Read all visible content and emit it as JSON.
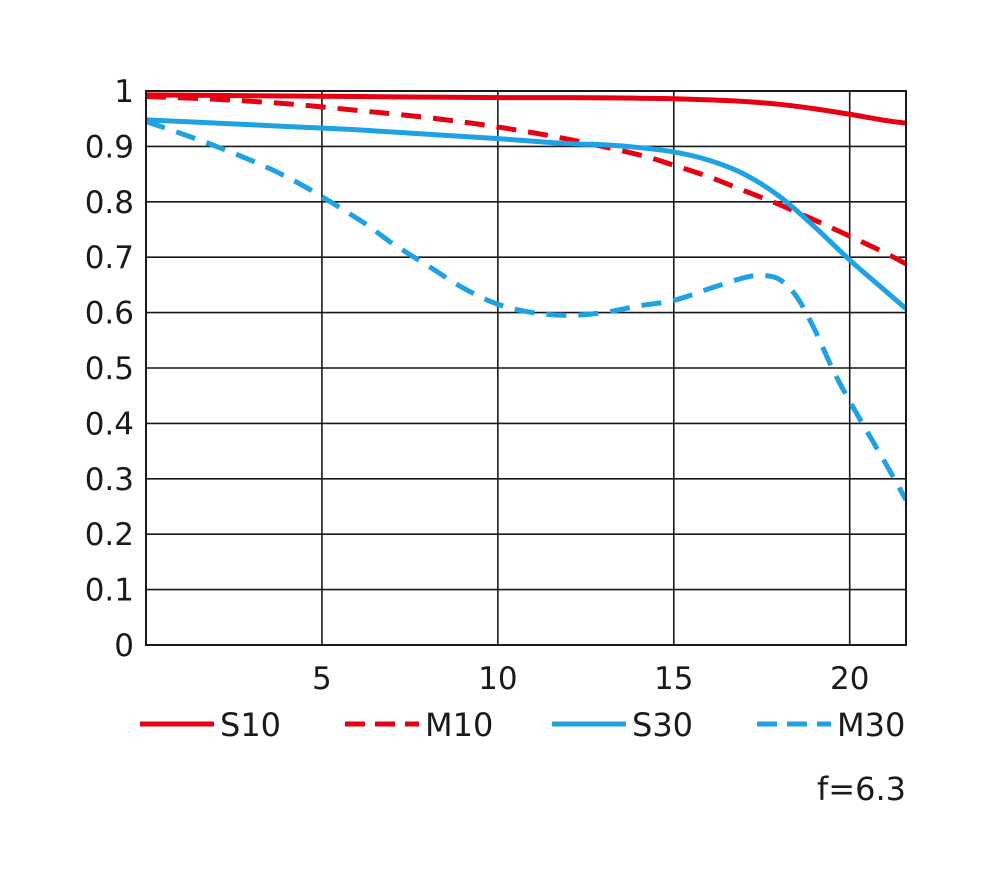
{
  "chart_data": {
    "type": "line",
    "title": "",
    "xlabel": "",
    "ylabel": "",
    "xlim": [
      0,
      21.6
    ],
    "ylim": [
      0,
      1
    ],
    "x_ticks": [
      5,
      10,
      15,
      20
    ],
    "x_tick_labels": [
      "5",
      "10",
      "15",
      "20"
    ],
    "y_ticks": [
      0,
      0.1,
      0.2,
      0.3,
      0.4,
      0.5,
      0.6,
      0.7,
      0.8,
      0.9,
      1
    ],
    "y_tick_labels": [
      "0",
      "0.1",
      "0.2",
      "0.3",
      "0.4",
      "0.5",
      "0.6",
      "0.7",
      "0.8",
      "0.9",
      "1"
    ],
    "grid": true,
    "legend_position": "bottom",
    "annotation": "f=6.3",
    "series": [
      {
        "name": "S10",
        "color": "#e60012",
        "dash": "solid",
        "x": [
          0,
          2,
          4,
          6,
          8,
          10,
          12,
          14,
          15,
          16,
          17,
          18,
          19,
          20,
          21,
          21.6
        ],
        "y": [
          0.993,
          0.992,
          0.991,
          0.99,
          0.989,
          0.988,
          0.988,
          0.987,
          0.986,
          0.984,
          0.981,
          0.976,
          0.968,
          0.958,
          0.947,
          0.942
        ]
      },
      {
        "name": "M10",
        "color": "#e60012",
        "dash": "dashed",
        "x": [
          0,
          2,
          4,
          6,
          8,
          10,
          12,
          14,
          15,
          16,
          17,
          18,
          19,
          20,
          21,
          21.6
        ],
        "y": [
          0.99,
          0.985,
          0.977,
          0.965,
          0.952,
          0.935,
          0.913,
          0.885,
          0.866,
          0.845,
          0.82,
          0.795,
          0.767,
          0.738,
          0.708,
          0.688
        ]
      },
      {
        "name": "S30",
        "color": "#1ea2e4",
        "dash": "solid",
        "x": [
          0,
          2,
          4,
          6,
          8,
          10,
          12,
          13,
          14,
          15,
          16,
          17,
          18,
          19,
          20,
          21,
          21.6
        ],
        "y": [
          0.948,
          0.942,
          0.936,
          0.93,
          0.922,
          0.914,
          0.905,
          0.903,
          0.898,
          0.89,
          0.875,
          0.85,
          0.81,
          0.755,
          0.695,
          0.64,
          0.607
        ]
      },
      {
        "name": "M30",
        "color": "#1ea2e4",
        "dash": "dashed",
        "x": [
          0,
          2,
          4,
          6,
          7,
          8,
          9,
          10,
          11,
          12,
          13,
          14,
          15,
          16,
          17,
          17.5,
          18,
          18.5,
          19,
          19.5,
          20,
          21,
          21.6
        ],
        "y": [
          0.945,
          0.9,
          0.845,
          0.77,
          0.725,
          0.685,
          0.645,
          0.615,
          0.6,
          0.595,
          0.6,
          0.612,
          0.622,
          0.643,
          0.663,
          0.667,
          0.66,
          0.628,
          0.57,
          0.5,
          0.44,
          0.33,
          0.262
        ]
      }
    ]
  }
}
